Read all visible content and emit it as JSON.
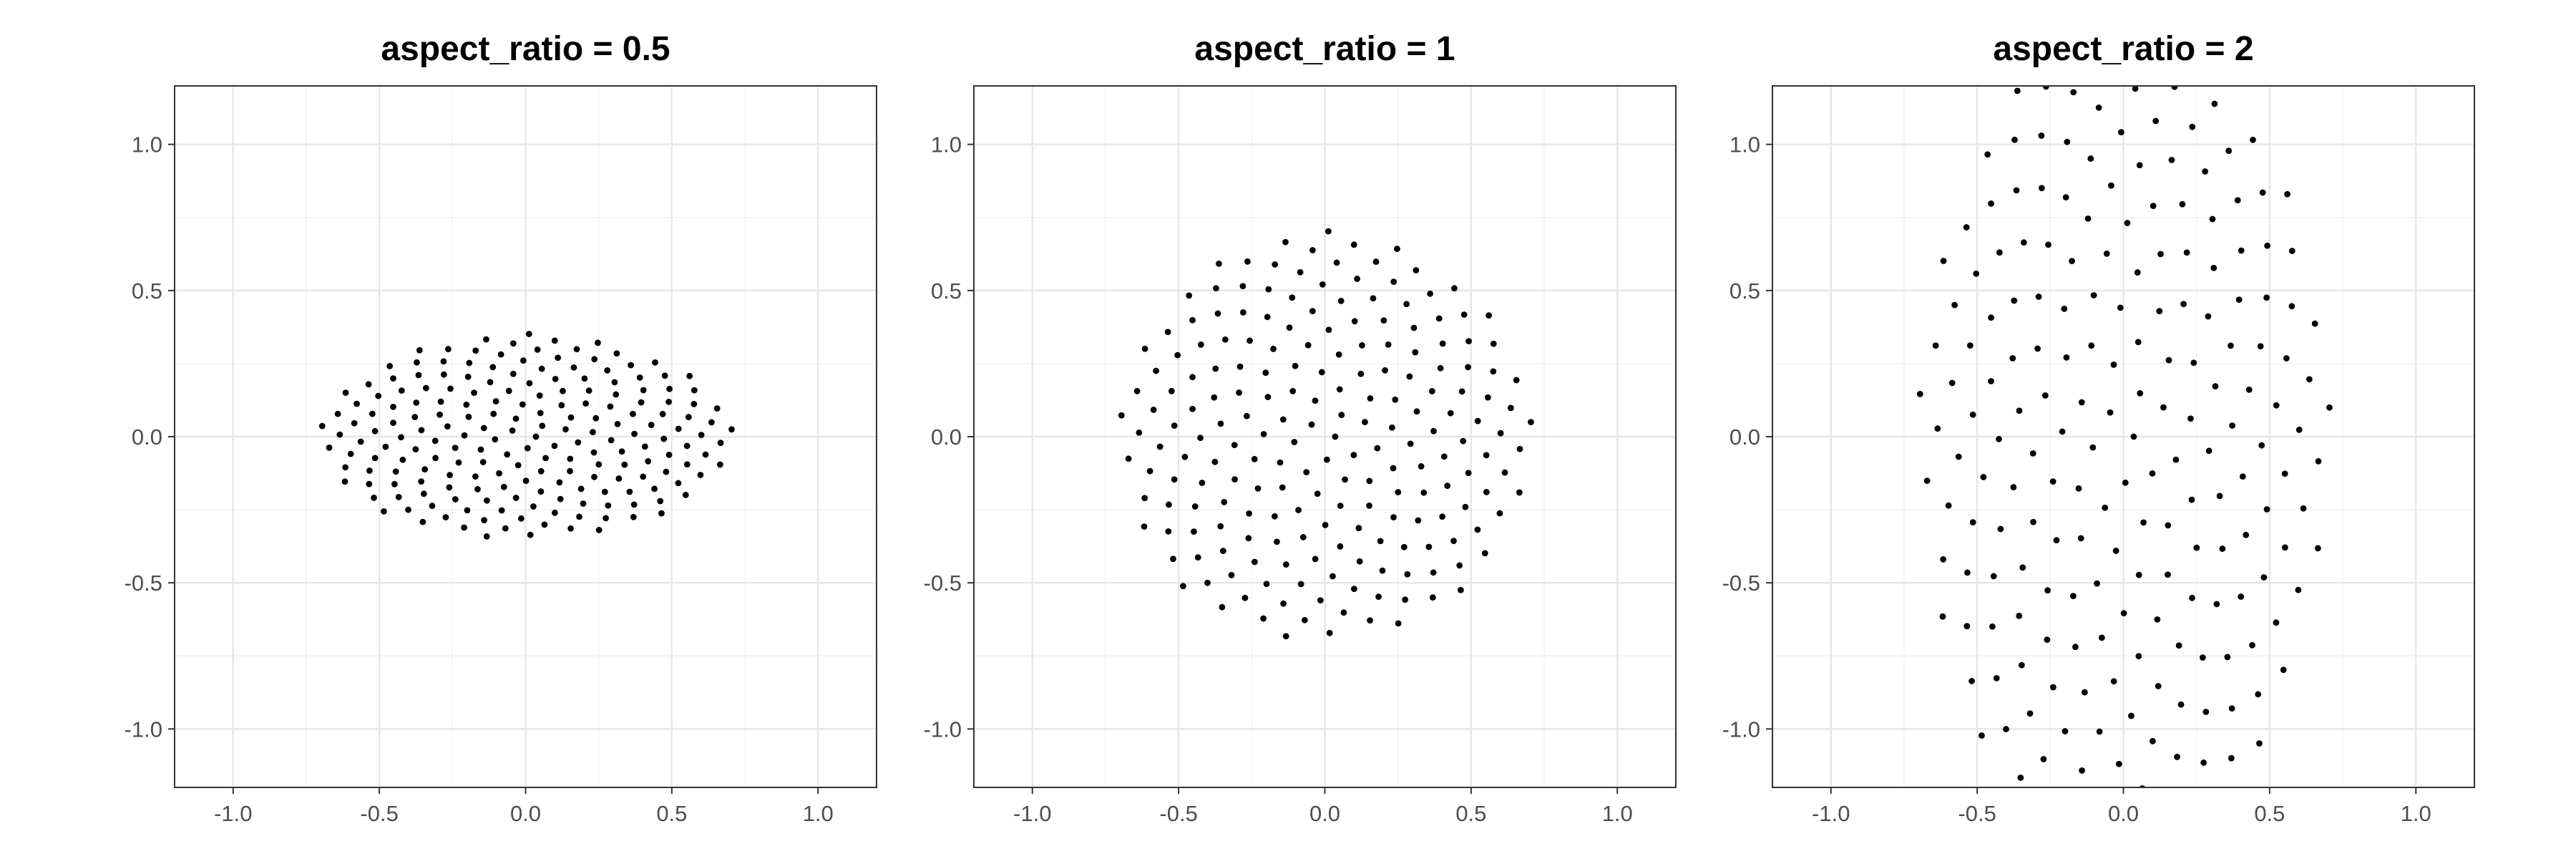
{
  "colors": {
    "point": "#000000",
    "grid_major": "#e6e6e6",
    "grid_minor": "#f2f2f2",
    "border": "#333333",
    "tick_text": "#4d4d4d"
  },
  "chart_data": [
    {
      "type": "scatter",
      "title": "aspect_ratio = 0.5",
      "aspect_ratio": 0.5,
      "n_points": 200,
      "pattern": "sunflower spiral (golden angle), x radius 0.7071, y radius 0.3536",
      "x_range": [
        -1.2,
        1.2
      ],
      "y_range": [
        -1.2,
        1.2
      ],
      "x_ticks": [
        "-1.0",
        "-0.5",
        "0.0",
        "0.5",
        "1.0"
      ],
      "y_ticks": [
        "1.0",
        "0.5",
        "0.0",
        "-0.5",
        "-1.0"
      ],
      "grid": true,
      "xlabel": "",
      "ylabel": ""
    },
    {
      "type": "scatter",
      "title": "aspect_ratio = 1",
      "aspect_ratio": 1,
      "n_points": 200,
      "pattern": "sunflower spiral (golden angle), x radius 0.7071, y radius 0.7071",
      "x_range": [
        -1.2,
        1.2
      ],
      "y_range": [
        -1.2,
        1.2
      ],
      "x_ticks": [
        "-1.0",
        "-0.5",
        "0.0",
        "0.5",
        "1.0"
      ],
      "y_ticks": [
        "1.0",
        "0.5",
        "0.0",
        "-0.5",
        "-1.0"
      ],
      "grid": true,
      "xlabel": "",
      "ylabel": ""
    },
    {
      "type": "scatter",
      "title": "aspect_ratio = 2",
      "aspect_ratio": 2,
      "n_points": 200,
      "pattern": "sunflower spiral (golden angle), x radius 0.7071, y radius 1.4142 (clipped by panel)",
      "x_range": [
        -1.2,
        1.2
      ],
      "y_range": [
        -1.2,
        1.2
      ],
      "x_ticks": [
        "-1.0",
        "-0.5",
        "0.0",
        "0.5",
        "1.0"
      ],
      "y_ticks": [
        "1.0",
        "0.5",
        "0.0",
        "-0.5",
        "-1.0"
      ],
      "grid": true,
      "xlabel": "",
      "ylabel": ""
    }
  ]
}
